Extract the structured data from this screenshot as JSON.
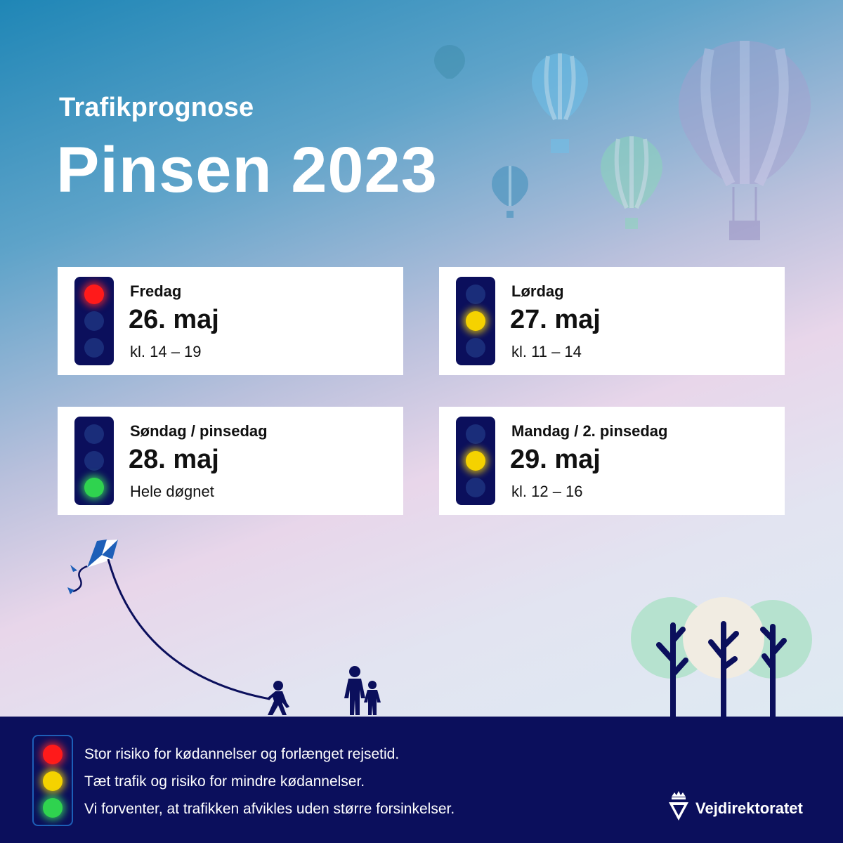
{
  "header": {
    "subtitle": "Trafikprognose",
    "title": "Pinsen 2023"
  },
  "days": [
    {
      "day": "Fredag",
      "date": "26. maj",
      "time": "kl. 14 – 19",
      "level": "red"
    },
    {
      "day": "Lørdag",
      "date": "27. maj",
      "time": "kl. 11 – 14",
      "level": "yellow"
    },
    {
      "day": "Søndag / pinsedag",
      "date": "28. maj",
      "time": "Hele døgnet",
      "level": "green"
    },
    {
      "day": "Mandag / 2. pinsedag",
      "date": "29. maj",
      "time": "kl. 12 – 16",
      "level": "yellow"
    }
  ],
  "legend": {
    "red": "Stor risiko for kødannelser og forlænget rejsetid.",
    "yellow": "Tæt trafik og risiko for mindre kødannelser.",
    "green": "Vi forventer, at trafikken afvikles uden større forsinkelser."
  },
  "brand": {
    "name": "Vejdirektoratet",
    "logo_icon": "crown-shield-icon"
  },
  "colors": {
    "navy": "#0b0f5c",
    "red": "#ff1a1a",
    "yellow": "#f5d200",
    "green": "#2fd34f"
  }
}
